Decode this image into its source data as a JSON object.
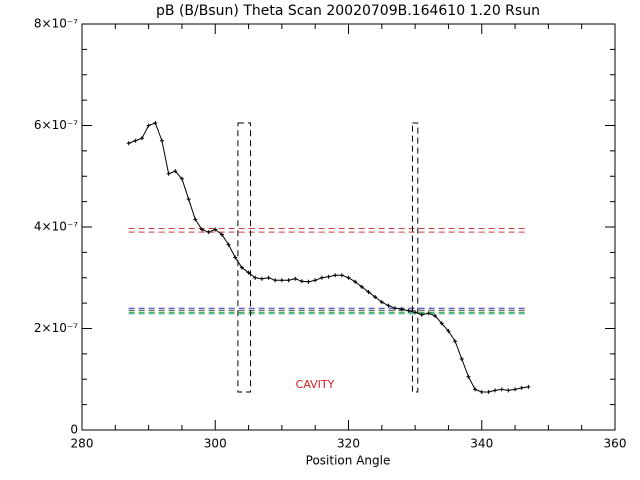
{
  "chart_data": {
    "type": "line",
    "title": "pB (B/Bsun) Theta Scan 20020709B.164610 1.20 Rsun",
    "xlabel": "Position Angle",
    "xlim": [
      280,
      360
    ],
    "xticks": [
      280,
      300,
      320,
      340,
      360
    ],
    "ylim": [
      0,
      8e-07
    ],
    "yticks": [
      0,
      {
        "value": 2e-07,
        "label": "2×10⁻⁷"
      },
      {
        "value": 4e-07,
        "label": "4×10⁻⁷"
      },
      {
        "value": 6e-07,
        "label": "6×10⁻⁷"
      },
      {
        "value": 8e-07,
        "label": "8×10⁻⁷"
      }
    ],
    "series": [
      {
        "color": "#000000",
        "x": [
          287,
          288,
          289,
          290,
          291,
          292,
          293,
          294,
          295,
          296,
          297,
          298,
          299,
          300,
          301,
          302,
          303,
          304,
          305,
          306,
          307,
          308,
          309,
          310,
          311,
          312,
          313,
          314,
          315,
          316,
          317,
          318,
          319,
          320,
          321,
          322,
          323,
          324,
          325,
          326,
          327,
          328,
          329,
          330,
          331,
          332,
          333,
          334,
          335,
          336,
          337,
          338,
          339,
          340,
          341,
          342,
          343,
          344,
          345,
          346,
          347
        ],
        "values": [
          5.65e-07,
          5.7e-07,
          5.75e-07,
          6e-07,
          6.05e-07,
          5.7e-07,
          5.05e-07,
          5.1e-07,
          4.95e-07,
          4.55e-07,
          4.15e-07,
          3.95e-07,
          3.9e-07,
          3.95e-07,
          3.85e-07,
          3.65e-07,
          3.4e-07,
          3.2e-07,
          3.1e-07,
          3e-07,
          2.98e-07,
          3e-07,
          2.95e-07,
          2.95e-07,
          2.95e-07,
          2.98e-07,
          2.93e-07,
          2.92e-07,
          2.95e-07,
          3e-07,
          3.02e-07,
          3.05e-07,
          3.05e-07,
          3e-07,
          2.92e-07,
          2.82e-07,
          2.72e-07,
          2.62e-07,
          2.52e-07,
          2.45e-07,
          2.4e-07,
          2.38e-07,
          2.35e-07,
          2.32e-07,
          2.27e-07,
          2.3e-07,
          2.25e-07,
          2.1e-07,
          1.95e-07,
          1.75e-07,
          1.4e-07,
          1.05e-07,
          8e-08,
          7.5e-08,
          7.5e-08,
          7.8e-08,
          8e-08,
          7.8e-08,
          8e-08,
          8.3e-08,
          8.5e-08
        ]
      }
    ],
    "reference_lines": [
      {
        "color": "#d04040",
        "y": 3.97e-07,
        "x": [
          287,
          347
        ]
      },
      {
        "color": "#d04040",
        "y": 3.9e-07,
        "x": [
          287,
          347
        ]
      },
      {
        "color": "#3030c0",
        "y": 2.4e-07,
        "x": [
          287,
          347
        ]
      },
      {
        "color": "#404040",
        "y": 2.36e-07,
        "x": [
          287,
          347
        ]
      },
      {
        "color": "#20a020",
        "y": 2.32e-07,
        "x": [
          287,
          347
        ]
      },
      {
        "color": "#20a0a0",
        "y": 2.29e-07,
        "x": [
          287,
          347
        ]
      }
    ],
    "regions": [
      {
        "color": "#000000",
        "x": [
          303.4,
          305.3
        ],
        "y": [
          7.5e-08,
          6.05e-07
        ]
      },
      {
        "color": "#000000",
        "x": [
          329.6,
          330.4
        ],
        "y": [
          7.5e-08,
          6.05e-07
        ]
      }
    ],
    "annotation": {
      "text": "CAVITY",
      "color": "#d02020"
    }
  }
}
